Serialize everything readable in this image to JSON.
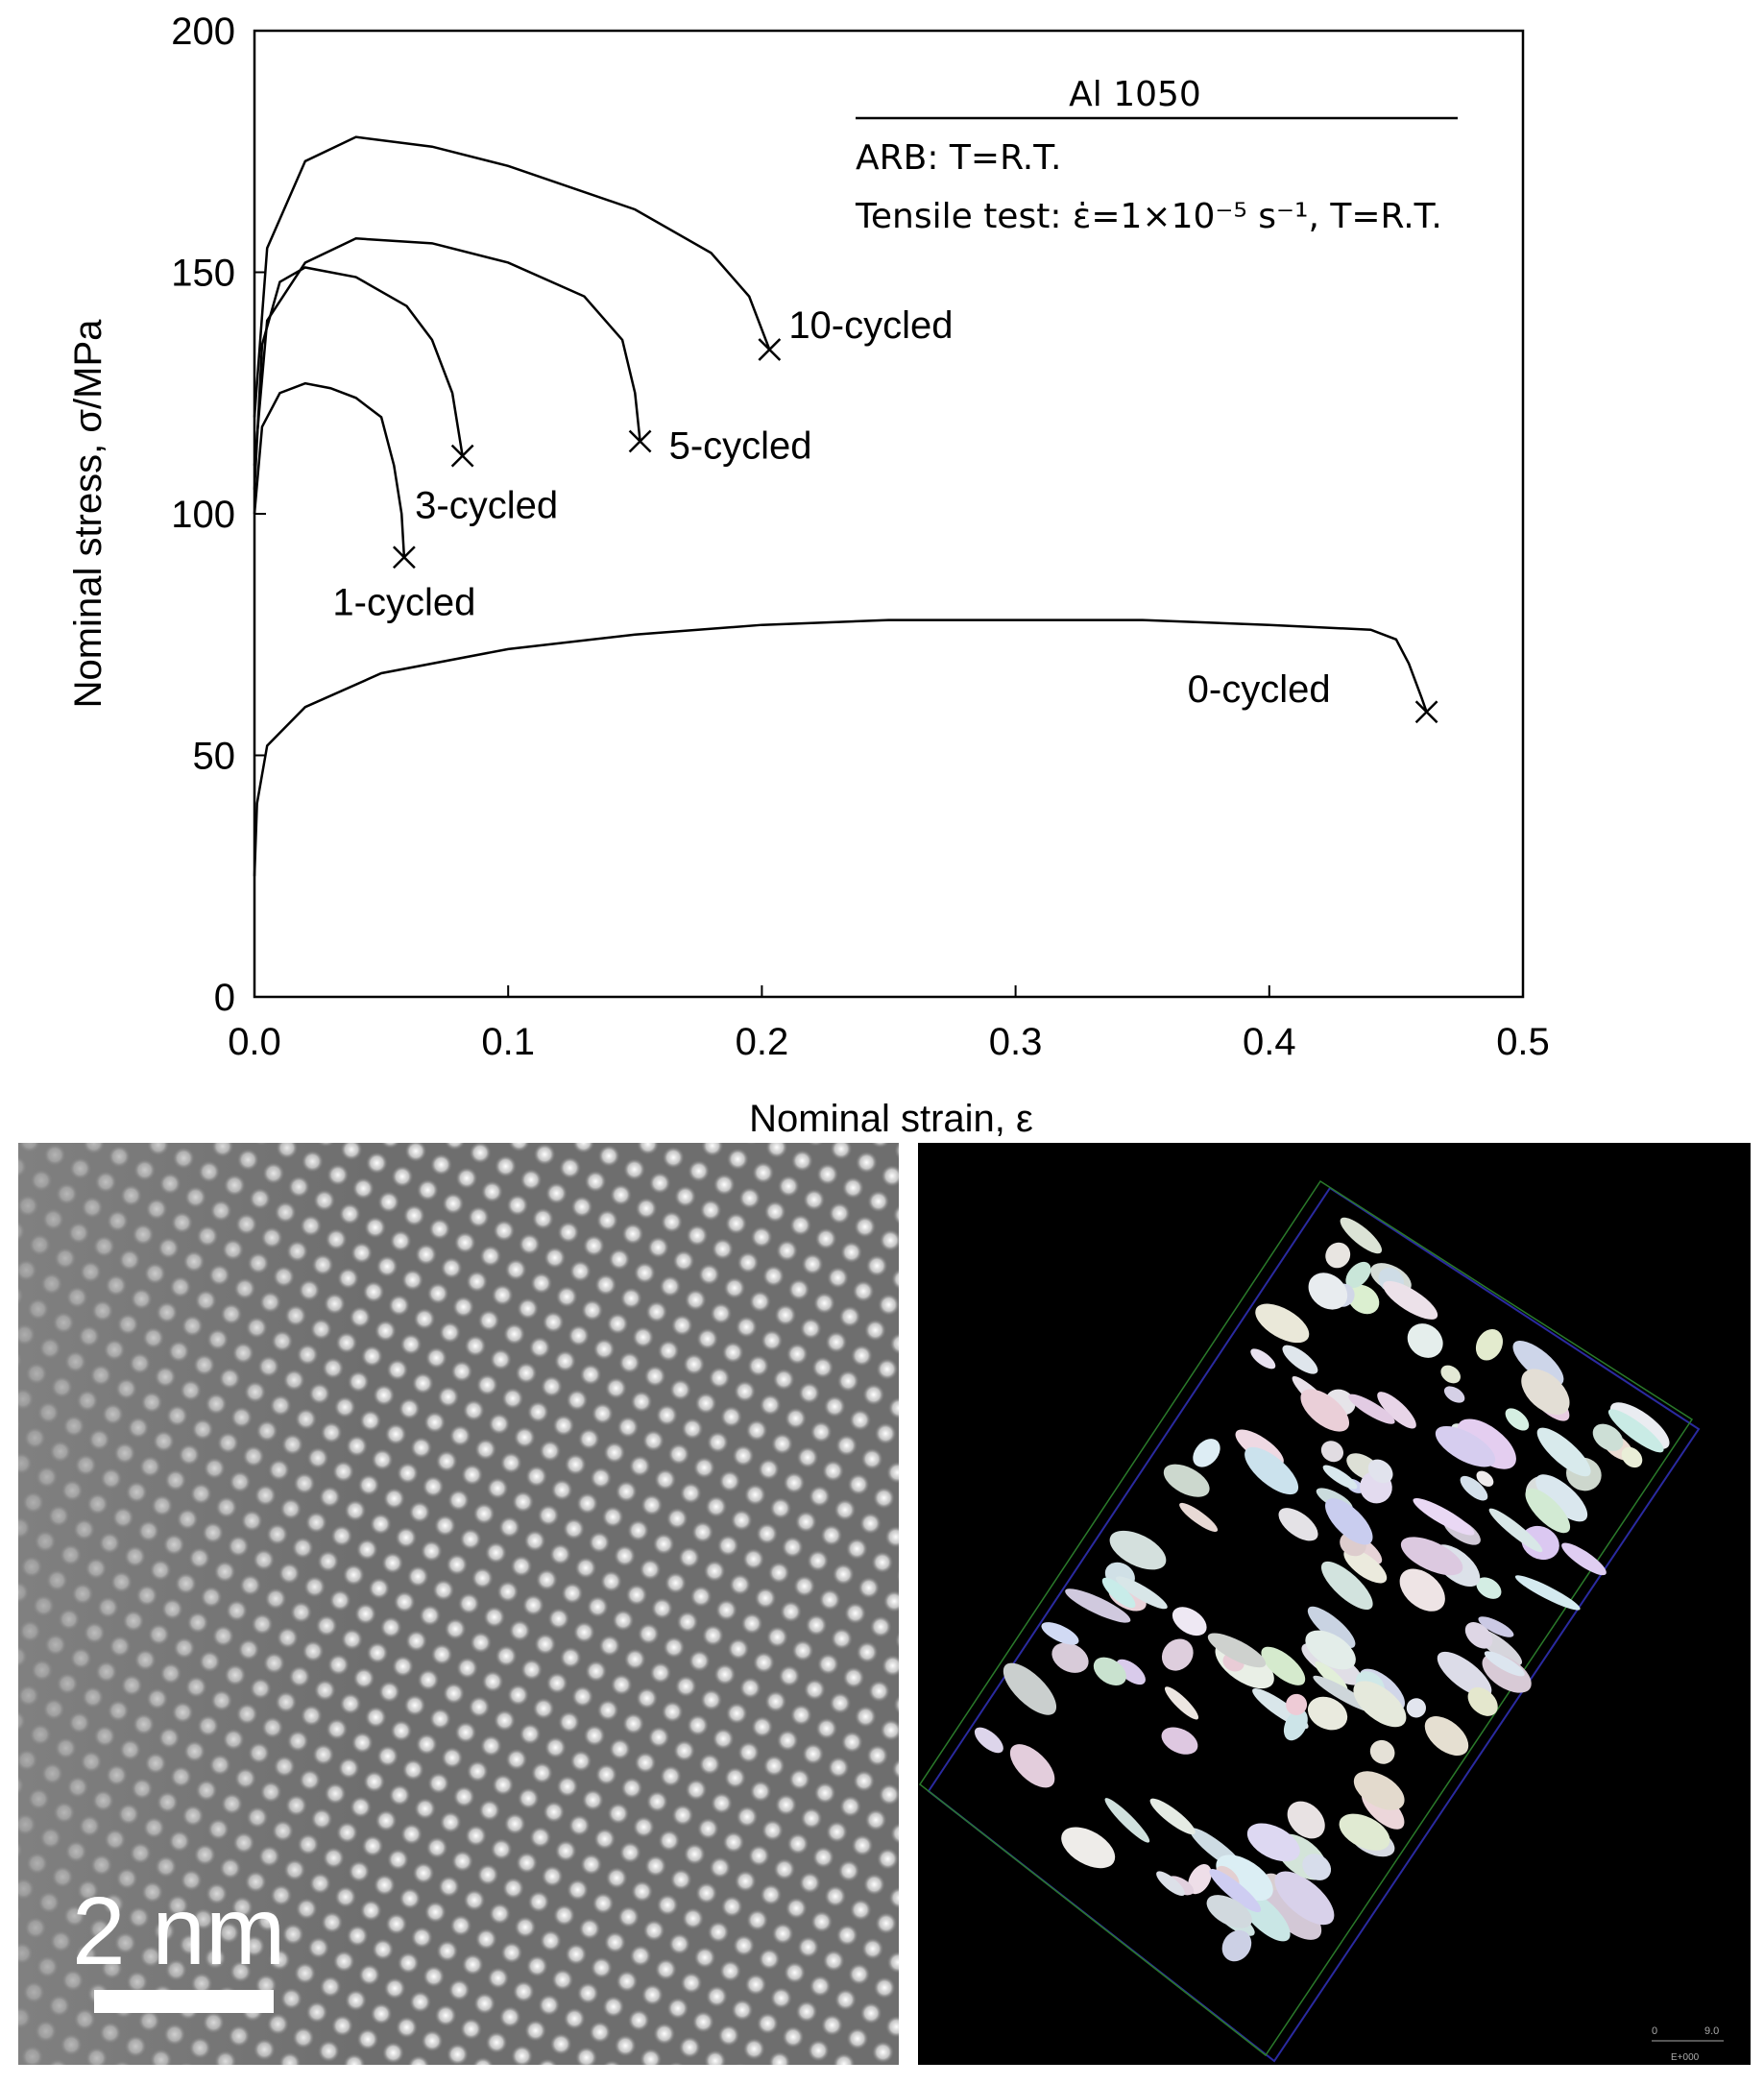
{
  "chart_data": {
    "type": "line",
    "xlabel": "Nominal strain, ε",
    "ylabel": "Nominal stress, σ/MPa",
    "annotations": [
      "Al 1050",
      "ARB: T=R.T.",
      "Tensile test: ε̇=1×10⁻⁵ s⁻¹, T=R.T."
    ],
    "xlim": [
      0,
      0.5
    ],
    "ylim": [
      0,
      200
    ],
    "xticks": [
      {
        "value": 0,
        "label": "0.0"
      },
      0.1,
      0.2,
      0.3,
      0.4,
      0.5
    ],
    "yticks": [
      0,
      50,
      100,
      150,
      200
    ],
    "color": "#000000",
    "series": [
      {
        "name": "0-cycled",
        "x": [
          0,
          0.001,
          0.005,
          0.02,
          0.05,
          0.1,
          0.15,
          0.2,
          0.25,
          0.3,
          0.35,
          0.4,
          0.44,
          0.45,
          0.455,
          0.46,
          0.462
        ],
        "values": [
          25,
          40,
          52,
          60,
          67,
          72,
          75,
          77,
          78,
          78,
          78,
          77,
          76,
          74,
          69,
          62,
          59
        ]
      },
      {
        "name": "1-cycled",
        "x": [
          0,
          0.003,
          0.01,
          0.02,
          0.03,
          0.04,
          0.05,
          0.055,
          0.058,
          0.059
        ],
        "values": [
          100,
          118,
          125,
          127,
          126,
          124,
          120,
          110,
          100,
          91
        ]
      },
      {
        "name": "3-cycled",
        "x": [
          0,
          0.003,
          0.01,
          0.02,
          0.04,
          0.06,
          0.07,
          0.078,
          0.082
        ],
        "values": [
          105,
          135,
          148,
          151,
          149,
          143,
          136,
          125,
          112
        ]
      },
      {
        "name": "5-cycled",
        "x": [
          0,
          0.005,
          0.02,
          0.04,
          0.07,
          0.1,
          0.13,
          0.145,
          0.15,
          0.152
        ],
        "values": [
          110,
          140,
          152,
          157,
          156,
          152,
          145,
          136,
          125,
          115
        ]
      },
      {
        "name": "10-cycled",
        "x": [
          0,
          0.005,
          0.02,
          0.04,
          0.07,
          0.1,
          0.15,
          0.18,
          0.195,
          0.203
        ],
        "values": [
          120,
          155,
          173,
          178,
          176,
          172,
          163,
          154,
          145,
          134
        ]
      }
    ]
  },
  "images": {
    "left_scale_bar": "2 nm",
    "right_scale_ticks": [
      "0",
      "9.0"
    ],
    "right_footer": "E+000"
  }
}
